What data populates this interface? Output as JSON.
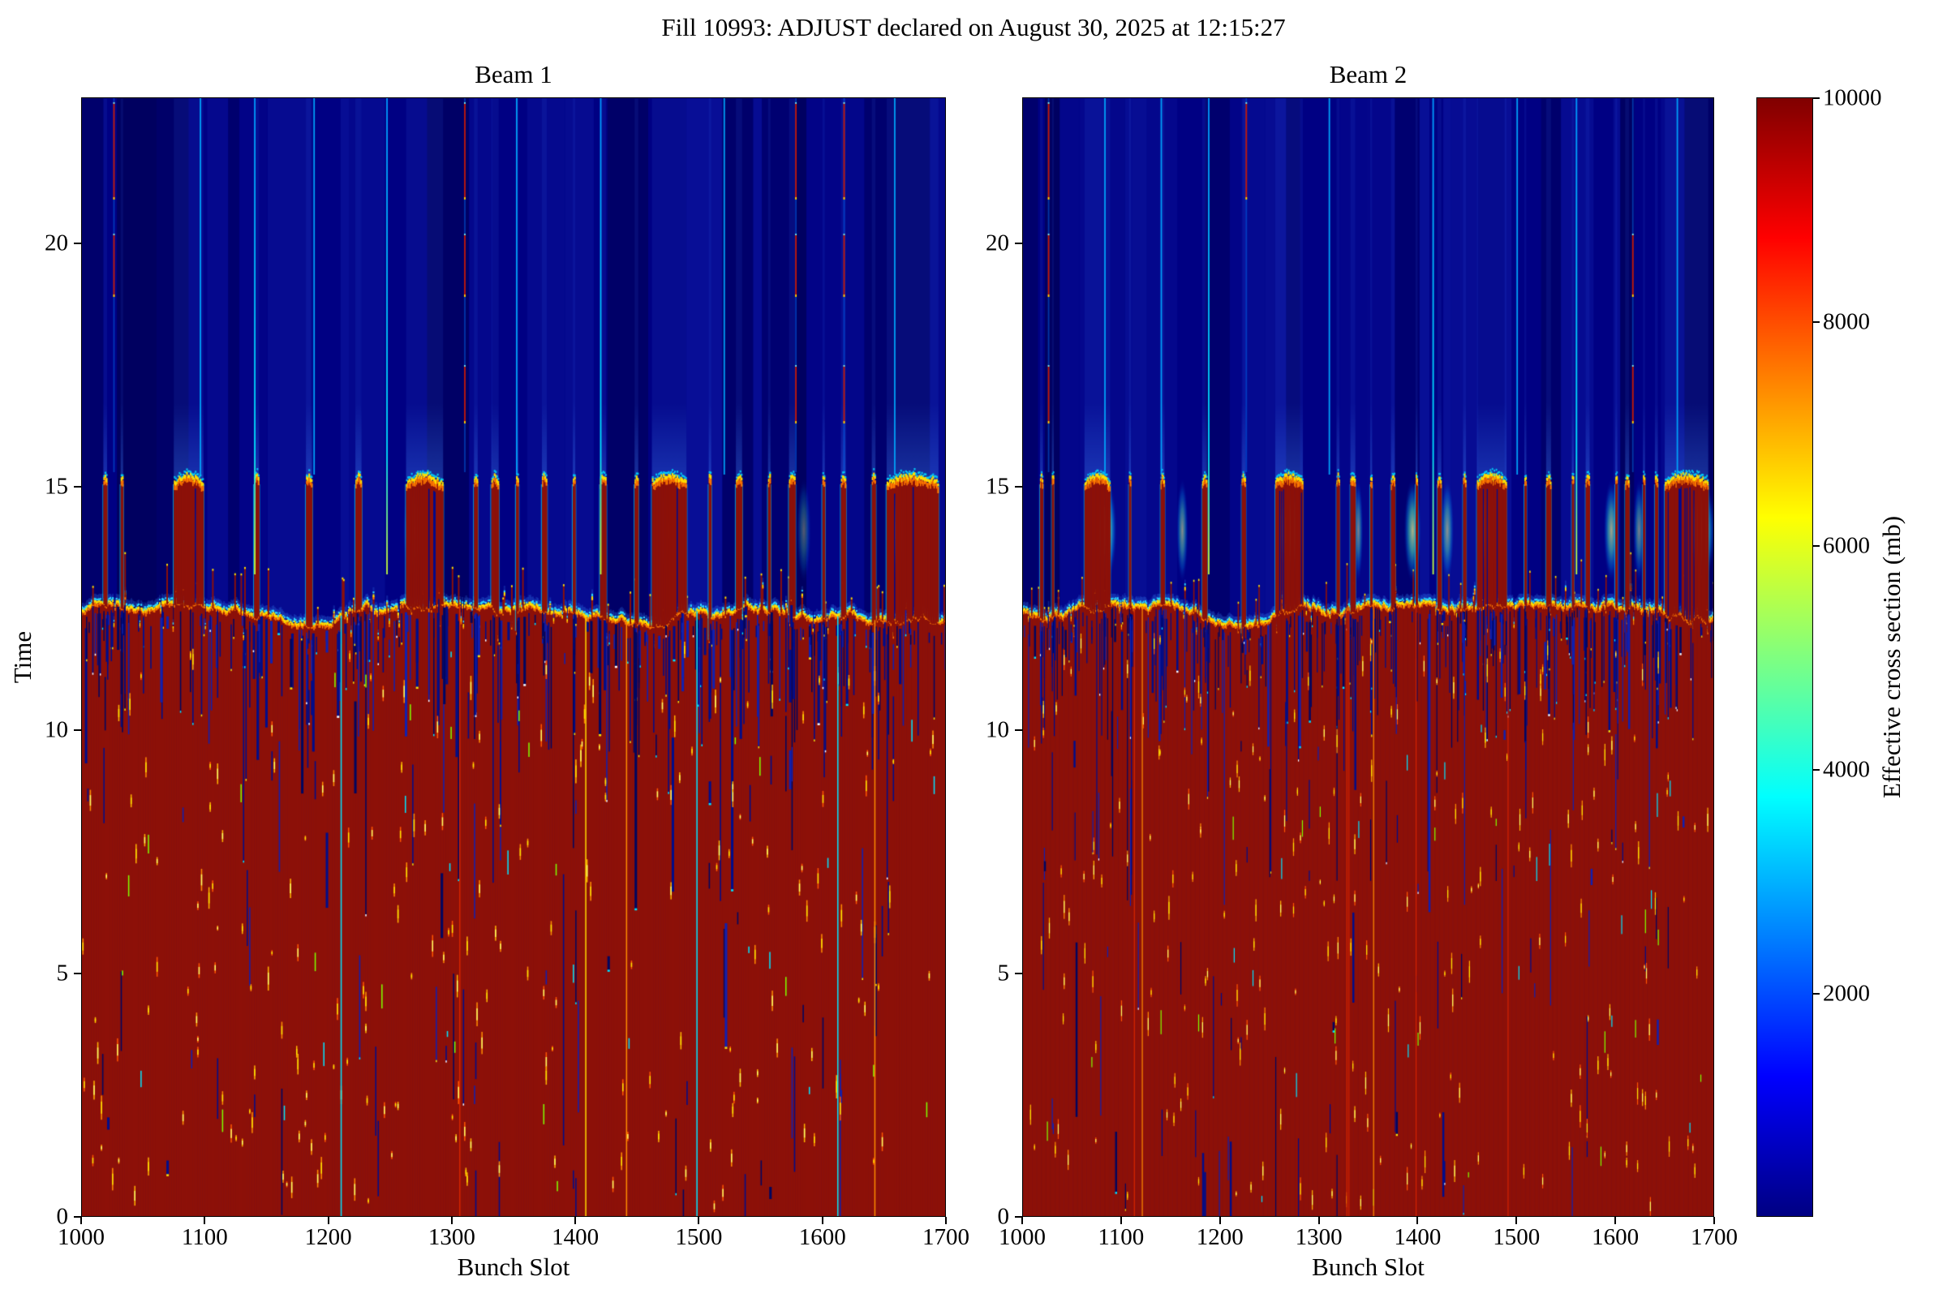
{
  "figure": {
    "title": "Fill 10993: ADJUST declared on August 30, 2025 at 12:15:27",
    "background": "#ffffff",
    "text_color": "#000000"
  },
  "chart_data": {
    "type": "heatmap",
    "title": "Fill 10993: ADJUST declared on August 30, 2025 at 12:15:27",
    "colormap": "jet",
    "value_range": [
      0,
      10000
    ],
    "x": {
      "label": "Bunch Slot",
      "range": [
        1000,
        1700
      ],
      "ticks": [
        1000,
        1100,
        1200,
        1300,
        1400,
        1500,
        1600,
        1700
      ]
    },
    "y": {
      "label": "Time",
      "range": [
        0,
        23
      ],
      "ticks": [
        0,
        5,
        10,
        15,
        20
      ]
    },
    "colorbar": {
      "label": "Effective cross section (mb)",
      "ticks": [
        2000,
        4000,
        6000,
        8000,
        10000
      ],
      "range": [
        0,
        10000
      ],
      "gradient_stops": [
        [
          "0%",
          "#000083"
        ],
        [
          "12.5%",
          "#0000ff"
        ],
        [
          "37.5%",
          "#00ffff"
        ],
        [
          "62.5%",
          "#ffff00"
        ],
        [
          "87.5%",
          "#ff0000"
        ],
        [
          "100%",
          "#800000"
        ]
      ]
    },
    "events": {
      "saturated_below_time": 12.4,
      "trains_persist_until_time": 15.15
    },
    "colors": {
      "sea_red": "#8d1109",
      "navy": "#000083",
      "orange": "#ff7a00",
      "yellow": "#ffdf00",
      "cyan_fringe": "#2bd8ff",
      "streak_navy": "#000d8a",
      "dash_red": "#c81400"
    },
    "heatmaps": [
      {
        "title": "Beam 1",
        "seed": 20993,
        "trains": [
          [
            1018,
            3
          ],
          [
            1032,
            2
          ],
          [
            1075,
            24
          ],
          [
            1140,
            4
          ],
          [
            1182,
            5
          ],
          [
            1222,
            5
          ],
          [
            1263,
            30
          ],
          [
            1318,
            3
          ],
          [
            1332,
            6
          ],
          [
            1352,
            2
          ],
          [
            1373,
            4
          ],
          [
            1398,
            2
          ],
          [
            1420,
            5
          ],
          [
            1448,
            3
          ],
          [
            1462,
            28
          ],
          [
            1508,
            2
          ],
          [
            1530,
            5
          ],
          [
            1556,
            2
          ],
          [
            1573,
            5
          ],
          [
            1600,
            2
          ],
          [
            1615,
            4
          ],
          [
            1640,
            3
          ],
          [
            1652,
            42
          ]
        ],
        "glows": [
          [
            1088,
            14,
            0.45
          ],
          [
            1270,
            20,
            0.5
          ],
          [
            1475,
            16,
            0.4
          ],
          [
            1585,
            12,
            0.35
          ],
          [
            1660,
            18,
            0.45
          ]
        ],
        "lines": [
          [
            1026,
            "red-dash"
          ],
          [
            1096,
            "cyan"
          ],
          [
            1140,
            "cyan-fade"
          ],
          [
            1188,
            "cyan"
          ],
          [
            1247,
            "cyan-fade"
          ],
          [
            1310,
            "red-dash"
          ],
          [
            1352,
            "cyan"
          ],
          [
            1420,
            "cyan-fade"
          ],
          [
            1520,
            "cyan"
          ],
          [
            1578,
            "red-dash"
          ],
          [
            1617,
            "red-dash"
          ],
          [
            1658,
            "cyan"
          ]
        ]
      },
      {
        "title": "Beam 2",
        "seed": 40993,
        "trains": [
          [
            1018,
            3
          ],
          [
            1030,
            2
          ],
          [
            1063,
            26
          ],
          [
            1108,
            2
          ],
          [
            1140,
            4
          ],
          [
            1182,
            5
          ],
          [
            1222,
            4
          ],
          [
            1256,
            28
          ],
          [
            1318,
            3
          ],
          [
            1332,
            5
          ],
          [
            1352,
            2
          ],
          [
            1373,
            4
          ],
          [
            1398,
            2
          ],
          [
            1420,
            4
          ],
          [
            1446,
            3
          ],
          [
            1460,
            30
          ],
          [
            1508,
            2
          ],
          [
            1530,
            5
          ],
          [
            1556,
            2
          ],
          [
            1570,
            4
          ],
          [
            1600,
            2
          ],
          [
            1610,
            4
          ],
          [
            1628,
            2
          ],
          [
            1640,
            3
          ],
          [
            1650,
            44
          ]
        ],
        "glows": [
          [
            1085,
            22,
            0.9
          ],
          [
            1162,
            12,
            0.55
          ],
          [
            1272,
            26,
            0.95
          ],
          [
            1340,
            10,
            0.5
          ],
          [
            1395,
            18,
            0.7
          ],
          [
            1430,
            14,
            0.55
          ],
          [
            1470,
            24,
            0.85
          ],
          [
            1596,
            16,
            0.65
          ],
          [
            1624,
            12,
            0.5
          ],
          [
            1688,
            26,
            0.95
          ]
        ],
        "lines": [
          [
            1026,
            "red-dash"
          ],
          [
            1083,
            "cyan"
          ],
          [
            1140,
            "cyan"
          ],
          [
            1188,
            "cyan-fade"
          ],
          [
            1226,
            "red-dash"
          ],
          [
            1310,
            "cyan"
          ],
          [
            1415,
            "cyan-fade"
          ],
          [
            1500,
            "cyan"
          ],
          [
            1560,
            "cyan-fade"
          ],
          [
            1617,
            "red-dash"
          ],
          [
            1662,
            "cyan"
          ]
        ]
      }
    ]
  }
}
